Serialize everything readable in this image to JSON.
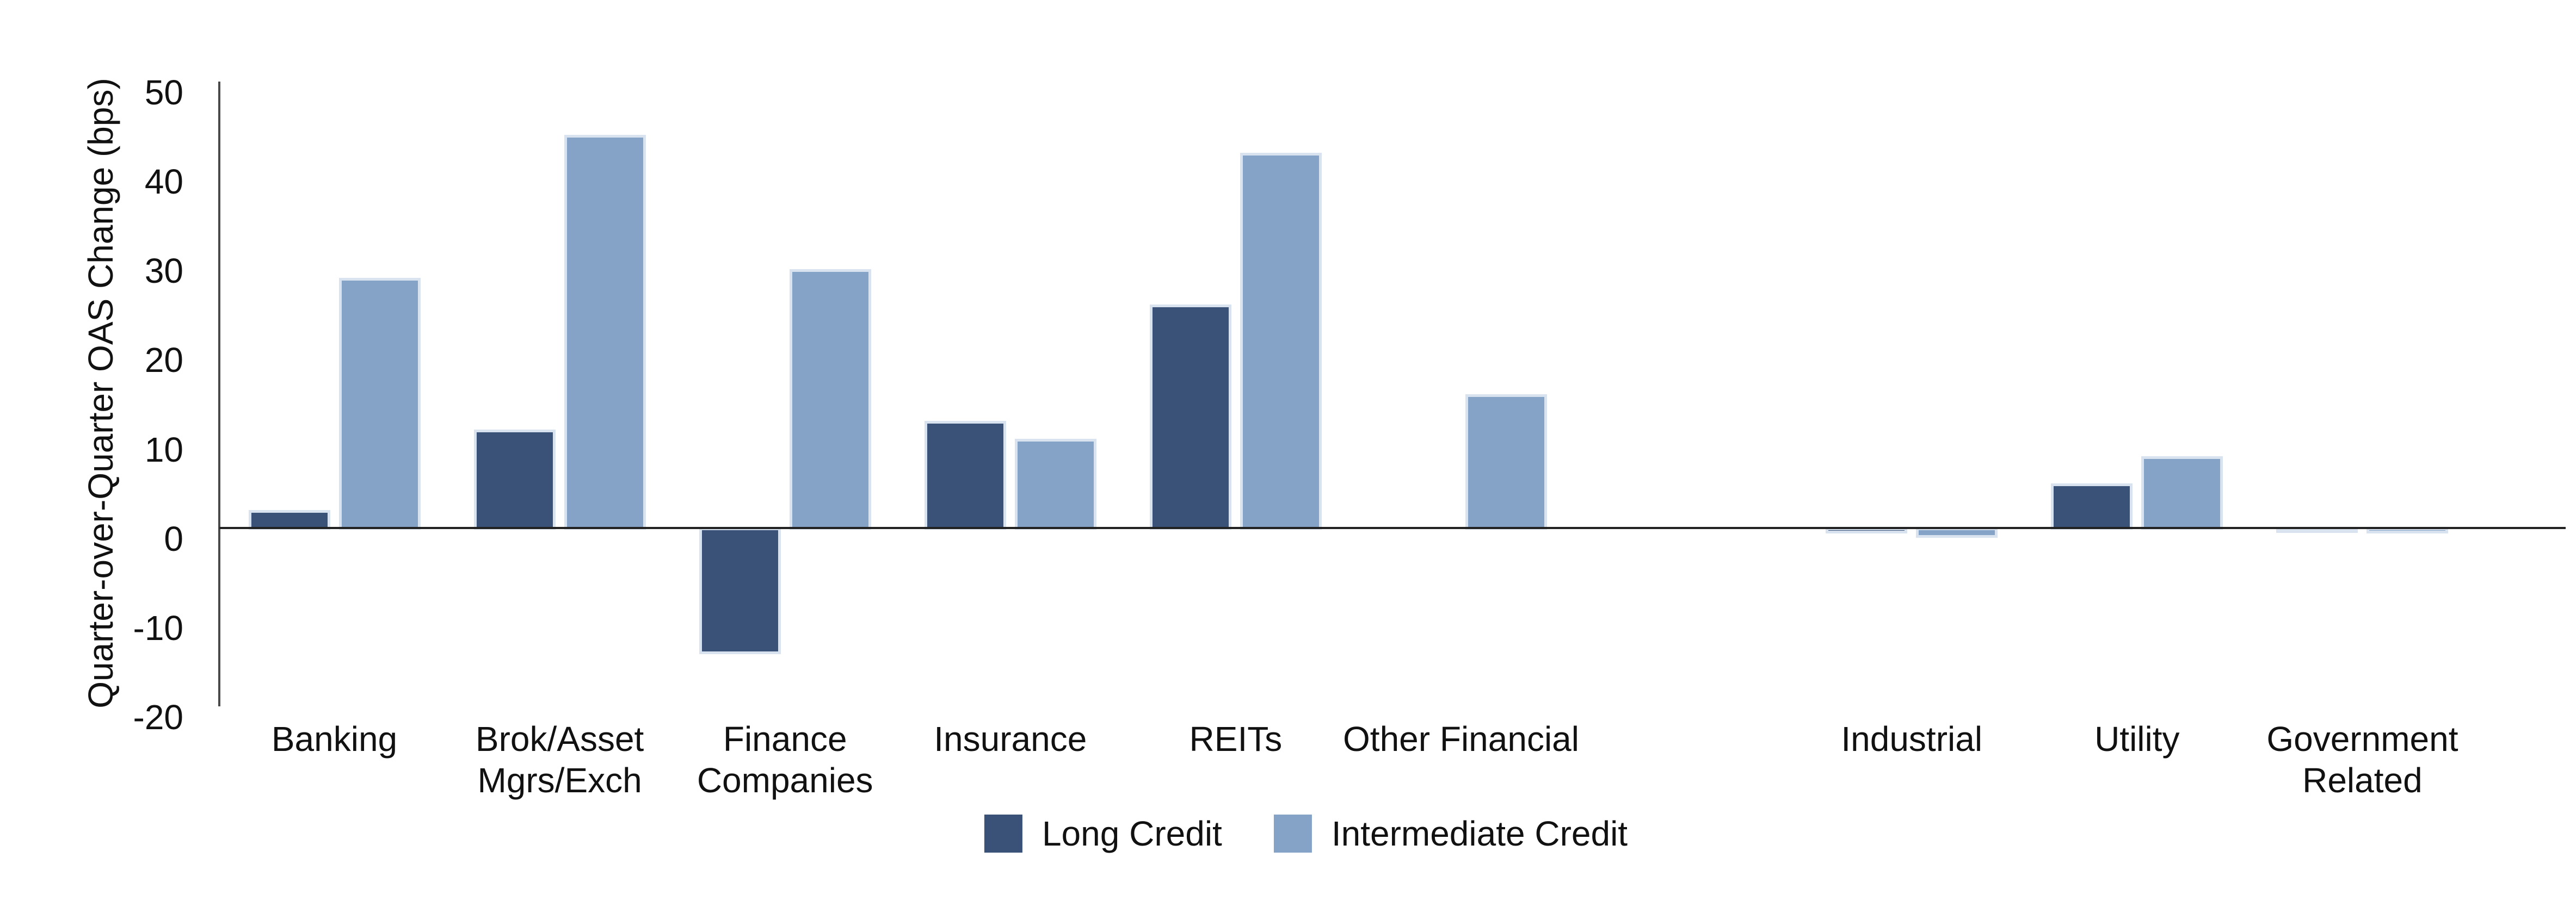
{
  "chart_data": {
    "type": "bar",
    "title": "",
    "xlabel": "",
    "ylabel": "Quarter-over-Quarter OAS Change (bps)",
    "ylim": [
      -20,
      50
    ],
    "yticks": [
      50,
      40,
      30,
      20,
      10,
      0,
      -10,
      -20
    ],
    "grid": false,
    "legend_position": "bottom-center",
    "background_color": "#ffffff",
    "axis_line_color": "#4a4a4a",
    "zero_line_color": "#222222",
    "categories": [
      "Banking",
      "Brok/Asset\nMgrs/Exch",
      "Finance\nCompanies",
      "Insurance",
      "REITs",
      "Other Financial",
      "",
      "Industrial",
      "Utility",
      "Government\nRelated"
    ],
    "series": [
      {
        "name": "Long Credit",
        "color": "#3A5278",
        "values": [
          2,
          11,
          -14,
          12,
          25,
          0,
          null,
          -0.5,
          5,
          -0.3
        ]
      },
      {
        "name": "Intermediate Credit",
        "color": "#84A3C7",
        "values": [
          28,
          44,
          29,
          10,
          42,
          15,
          null,
          -1,
          8,
          -0.5
        ]
      }
    ]
  }
}
